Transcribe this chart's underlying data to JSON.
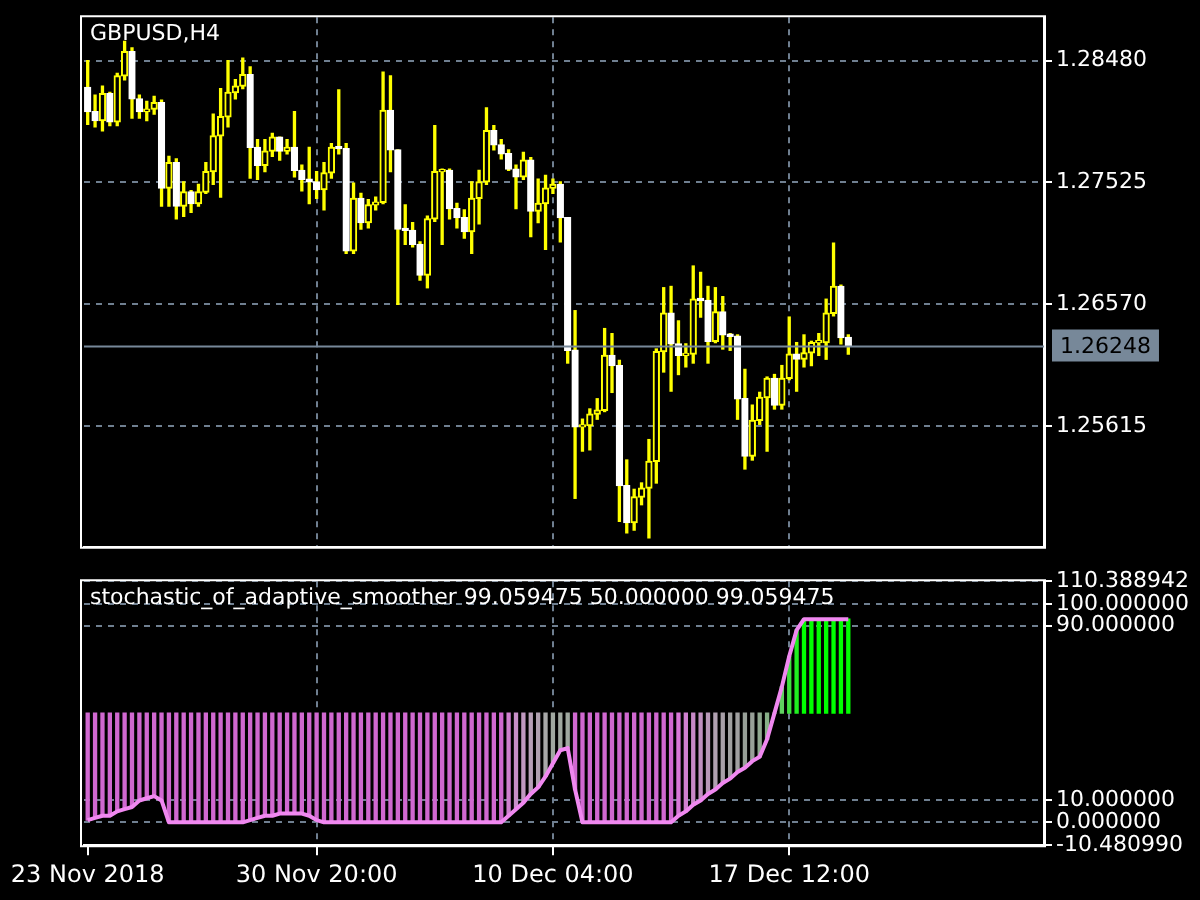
{
  "chart_data": [
    {
      "type": "candlestick",
      "title": "GBPUSD,H4",
      "color": "#ffff00",
      "colors": [
        "#ffffff",
        "#ffffff",
        "#ffff00",
        "#ffffff",
        "#ffff00",
        "#ffff00",
        "#ffffff",
        "#ffffff",
        "#ffff00",
        "#ffff00",
        "#ffffff",
        "#ffff00",
        "#ffffff",
        "#ffff00",
        "#ffffff",
        "#ffff00",
        "#ffff00",
        "#ffff00",
        "#ffff00",
        "#ffff00",
        "#ffff00",
        "#ffff00",
        "#ffffff",
        "#ffffff",
        "#ffff00",
        "#ffff00",
        "#ffffff",
        "#ffff00",
        "#ffffff",
        "#ffffff",
        "#ffffff",
        "#ffffff",
        "#ffff00",
        "#ffff00",
        "#ffffff",
        "#ffffff",
        "#ffff00",
        "#ffffff",
        "#ffff00",
        "#ffff00",
        "#ffff00",
        "#ffffff",
        "#ffffff",
        "#ffffff",
        "#ffffff",
        "#ffffff",
        "#ffff00",
        "#ffff00",
        "#ffff00",
        "#ffffff",
        "#ffffff",
        "#ffffff",
        "#ffff00",
        "#ffff00",
        "#ffff00",
        "#ffffff",
        "#ffffff",
        "#ffffff",
        "#ffffff",
        "#ffff00",
        "#ffffff",
        "#ffff00",
        "#ffff00",
        "#ffff00",
        "#ffffff",
        "#ffffff",
        "#ffffff",
        "#ffff00",
        "#ffff00",
        "#ffff00",
        "#ffff00",
        "#ffffff",
        "#ffffff",
        "#ffffff",
        "#ffff00",
        "#ffff00",
        "#ffff00",
        "#ffff00",
        "#ffff00",
        "#ffffff",
        "#ffffff",
        "#ffff00",
        "#ffff00",
        "#ffffff",
        "#ffffff",
        "#ffff00",
        "#ffffff",
        "#ffffff",
        "#ffffff",
        "#ffffff",
        "#ffff00",
        "#ffff00",
        "#ffff00",
        "#ffffff",
        "#ffff00",
        "#ffff00",
        "#ffffff",
        "#ffff00",
        "#ffff00",
        "#ffff00",
        "#ffff00",
        "#ffff00",
        "#ffffff",
        "#ffffff",
        null,
        null,
        null,
        null,
        null,
        null,
        null,
        null,
        null,
        null,
        null,
        null,
        null,
        null,
        null,
        null,
        null,
        null,
        null,
        null,
        null,
        null,
        null,
        null,
        null,
        null
      ],
      "categories": [
        null,
        null,
        null,
        null,
        null,
        null,
        null,
        null,
        null,
        null,
        null,
        null,
        null,
        null,
        null,
        null,
        null,
        null,
        null,
        null,
        null,
        null,
        null,
        null,
        null,
        null,
        null,
        null,
        null,
        null,
        null,
        null,
        null,
        null,
        null,
        null,
        null,
        null,
        null,
        null,
        null,
        null,
        null,
        null,
        null,
        null,
        null,
        null,
        null,
        null,
        null,
        null,
        null,
        null,
        null,
        null,
        null,
        null,
        null,
        null,
        null,
        null,
        null,
        null,
        null,
        null,
        null,
        null,
        null,
        null,
        null,
        null,
        null,
        null,
        null,
        null,
        null,
        null,
        null,
        null,
        null,
        null,
        null,
        null,
        null,
        null,
        null,
        null,
        null,
        null,
        null,
        null,
        null,
        null,
        null,
        null,
        null,
        null,
        null,
        null,
        null,
        null,
        null,
        null,
        null,
        null,
        null,
        null,
        null,
        null,
        null,
        null,
        null,
        null,
        null,
        null,
        null,
        null,
        null,
        null,
        null,
        null,
        null,
        null,
        null,
        null,
        null,
        null,
        null,
        null
      ],
      "ohlc": [
        [
          1.2827,
          1.2848,
          1.2798,
          1.2808
        ],
        [
          1.2808,
          1.2821,
          1.2796,
          1.2801
        ],
        [
          1.2801,
          1.2828,
          1.2793,
          1.2822
        ],
        [
          1.2822,
          1.2823,
          1.2797,
          1.28
        ],
        [
          1.28,
          1.2838,
          1.2797,
          1.2836
        ],
        [
          1.2836,
          1.2863,
          1.2833,
          1.2855
        ],
        [
          1.2855,
          1.2858,
          1.2803,
          1.2818
        ],
        [
          1.2818,
          1.2821,
          1.2803,
          1.2808
        ],
        [
          1.2808,
          1.2816,
          1.2801,
          1.281
        ],
        [
          1.281,
          1.282,
          1.2806,
          1.2815
        ],
        [
          1.2815,
          1.2817,
          1.2734,
          1.2748
        ],
        [
          1.2748,
          1.2773,
          1.2734,
          1.2768
        ],
        [
          1.2768,
          1.2771,
          1.2724,
          1.2734
        ],
        [
          1.2734,
          1.2753,
          1.2726,
          1.2745
        ],
        [
          1.2745,
          1.2746,
          1.2729,
          1.2736
        ],
        [
          1.2736,
          1.2751,
          1.2734,
          1.2745
        ],
        [
          1.2745,
          1.2768,
          1.2744,
          1.2761
        ],
        [
          1.2761,
          1.2806,
          1.2751,
          1.2789
        ],
        [
          1.2789,
          1.2826,
          1.2741,
          1.2804
        ],
        [
          1.2804,
          1.2848,
          1.2796,
          1.2823
        ],
        [
          1.2823,
          1.2833,
          1.2818,
          1.2828
        ],
        [
          1.2828,
          1.285,
          1.2826,
          1.2837
        ],
        [
          1.2837,
          1.2843,
          1.2756,
          1.278
        ],
        [
          1.278,
          1.2786,
          1.2755,
          1.2766
        ],
        [
          1.2766,
          1.2786,
          1.2761,
          1.2777
        ],
        [
          1.2777,
          1.2791,
          1.2773,
          1.2788
        ],
        [
          1.2788,
          1.2788,
          1.277,
          1.2777
        ],
        [
          1.2777,
          1.2786,
          1.2775,
          1.278
        ],
        [
          1.278,
          1.2808,
          1.2757,
          1.2762
        ],
        [
          1.2762,
          1.2766,
          1.2746,
          1.2755
        ],
        [
          1.2755,
          1.278,
          1.2736,
          1.2753
        ],
        [
          1.2753,
          1.2761,
          1.274,
          1.2747
        ],
        [
          1.2747,
          1.2768,
          1.2731,
          1.276
        ],
        [
          1.276,
          1.2783,
          1.2756,
          1.278
        ],
        [
          1.278,
          1.2825,
          1.2775,
          1.2779
        ],
        [
          1.2779,
          1.2783,
          1.2697,
          1.2699
        ],
        [
          1.2699,
          1.2752,
          1.2697,
          1.274
        ],
        [
          1.274,
          1.2744,
          1.2716,
          1.2721
        ],
        [
          1.2721,
          1.2739,
          1.2717,
          1.2735
        ],
        [
          1.2735,
          1.2741,
          1.2731,
          1.2737
        ],
        [
          1.2737,
          1.2839,
          1.2736,
          1.2809
        ],
        [
          1.2809,
          1.2836,
          1.2761,
          1.2778
        ],
        [
          1.2778,
          1.2778,
          1.2657,
          1.2716
        ],
        [
          1.2716,
          1.2735,
          1.2704,
          1.2715
        ],
        [
          1.2715,
          1.2721,
          1.2702,
          1.2704
        ],
        [
          1.2704,
          1.2706,
          1.2676,
          1.268
        ],
        [
          1.268,
          1.2726,
          1.267,
          1.2724
        ],
        [
          1.2724,
          1.2797,
          1.2722,
          1.2761
        ],
        [
          1.2761,
          1.2763,
          1.2704,
          1.2762
        ],
        [
          1.2762,
          1.2763,
          1.2724,
          1.2732
        ],
        [
          1.2732,
          1.2736,
          1.2717,
          1.2725
        ],
        [
          1.2725,
          1.2731,
          1.2709,
          1.2714
        ],
        [
          1.2714,
          1.2753,
          1.2697,
          1.274
        ],
        [
          1.274,
          1.2762,
          1.272,
          1.2753
        ],
        [
          1.2753,
          1.2811,
          1.2751,
          1.2793
        ],
        [
          1.2793,
          1.2797,
          1.2778,
          1.2782
        ],
        [
          1.2782,
          1.2786,
          1.2771,
          1.2775
        ],
        [
          1.2775,
          1.2778,
          1.2762,
          1.2763
        ],
        [
          1.2763,
          1.2766,
          1.2732,
          1.2757
        ],
        [
          1.2757,
          1.2776,
          1.2755,
          1.277
        ],
        [
          1.277,
          1.2772,
          1.271,
          1.273
        ],
        [
          1.273,
          1.2755,
          1.2721,
          1.2736
        ],
        [
          1.2736,
          1.2758,
          1.27,
          1.2748
        ],
        [
          1.2748,
          1.2755,
          1.2744,
          1.2751
        ],
        [
          1.2751,
          1.2753,
          1.2706,
          1.2725
        ],
        [
          1.2725,
          1.2725,
          1.2611,
          1.2621
        ],
        [
          1.2621,
          1.2652,
          1.2505,
          1.2561
        ],
        [
          1.2561,
          1.2567,
          1.2542,
          1.2562
        ],
        [
          1.2562,
          1.2575,
          1.2543,
          1.2571
        ],
        [
          1.2571,
          1.2583,
          1.2567,
          1.2574
        ],
        [
          1.2574,
          1.2638,
          1.2573,
          1.2617
        ],
        [
          1.2617,
          1.2634,
          1.2588,
          1.2609
        ],
        [
          1.2609,
          1.2613,
          1.2487,
          1.2515
        ],
        [
          1.2515,
          1.2535,
          1.2478,
          1.2486
        ],
        [
          1.2486,
          1.2512,
          1.248,
          1.2506
        ],
        [
          1.2506,
          1.2517,
          1.25,
          1.2513
        ],
        [
          1.2513,
          1.2551,
          1.2474,
          1.2534
        ],
        [
          1.2534,
          1.2622,
          1.2517,
          1.262
        ],
        [
          1.262,
          1.267,
          1.2604,
          1.265
        ],
        [
          1.265,
          1.2671,
          1.2589,
          1.2626
        ],
        [
          1.2626,
          1.2644,
          1.2602,
          1.2617
        ],
        [
          1.2617,
          1.2626,
          1.2608,
          1.2618
        ],
        [
          1.2618,
          1.2687,
          1.2611,
          1.2661
        ],
        [
          1.2661,
          1.2682,
          1.2647,
          1.266
        ],
        [
          1.266,
          1.2671,
          1.2611,
          1.2628
        ],
        [
          1.2628,
          1.267,
          1.2627,
          1.2651
        ],
        [
          1.2651,
          1.2663,
          1.2622,
          1.2633
        ],
        [
          1.2633,
          1.2634,
          1.2621,
          1.2632
        ],
        [
          1.2632,
          1.2633,
          1.2567,
          1.2583
        ],
        [
          1.2583,
          1.2606,
          1.2528,
          1.2538
        ],
        [
          1.2538,
          1.2578,
          1.2535,
          1.2566
        ],
        [
          1.2566,
          1.2588,
          1.2563,
          1.2584
        ],
        [
          1.2584,
          1.26,
          1.2542,
          1.2599
        ],
        [
          1.2599,
          1.2602,
          1.2575,
          1.2578
        ],
        [
          1.2578,
          1.2609,
          1.2575,
          1.2599
        ],
        [
          1.2599,
          1.2647,
          1.2598,
          1.2618
        ],
        [
          1.2618,
          1.2627,
          1.2589,
          1.2614
        ],
        [
          1.2614,
          1.2633,
          1.2608,
          1.2619
        ],
        [
          1.2619,
          1.2628,
          1.2609,
          1.2627
        ],
        [
          1.2627,
          1.2634,
          1.2617,
          1.2627
        ],
        [
          1.2627,
          1.2661,
          1.2614,
          1.265
        ],
        [
          1.265,
          1.2705,
          1.2648,
          1.2671
        ],
        [
          1.2671,
          1.2672,
          1.2626,
          1.2631
        ],
        [
          1.2631,
          1.2633,
          1.2618,
          1.26248
        ],
        null,
        null,
        null,
        null,
        null,
        null,
        null,
        null,
        null,
        null,
        null,
        null,
        null,
        null,
        null,
        null,
        null,
        null,
        null,
        null,
        null,
        null,
        null,
        null,
        null,
        null
      ],
      "ylim": [
        1.2467,
        1.2882
      ],
      "yticks": [
        {
          "value": 1.25615,
          "label": "1.25615"
        },
        {
          "value": 1.2657,
          "label": "1.26570"
        },
        {
          "value": 1.27525,
          "label": "1.27525"
        },
        {
          "value": 1.2848,
          "label": "1.28480"
        }
      ],
      "grid": true,
      "tick_labels": "y",
      "ref_lines": [
        {
          "axis": "y",
          "value": 1.26248,
          "label": "1.26248",
          "color": "#778899"
        }
      ]
    },
    {
      "type": "bar",
      "title": "stochastic_of_adaptive_smoother 99.059475 50.000000 99.059475",
      "categories": [
        "23 Nov 2018",
        null,
        null,
        null,
        null,
        null,
        null,
        null,
        null,
        null,
        null,
        null,
        null,
        null,
        null,
        null,
        null,
        null,
        null,
        null,
        null,
        null,
        null,
        null,
        null,
        null,
        null,
        null,
        null,
        null,
        null,
        "30 Nov 20:00",
        null,
        null,
        null,
        null,
        null,
        null,
        null,
        null,
        null,
        null,
        null,
        null,
        null,
        null,
        null,
        null,
        null,
        null,
        null,
        null,
        null,
        null,
        null,
        null,
        null,
        null,
        null,
        null,
        null,
        null,
        null,
        "10 Dec 04:00",
        null,
        null,
        null,
        null,
        null,
        null,
        null,
        null,
        null,
        null,
        null,
        null,
        null,
        null,
        null,
        null,
        null,
        null,
        null,
        null,
        null,
        null,
        null,
        null,
        null,
        null,
        null,
        null,
        null,
        null,
        null,
        "17 Dec 12:00",
        null,
        null,
        null,
        null,
        null,
        null,
        null,
        null,
        null,
        null,
        null,
        null,
        null,
        null,
        null,
        null,
        null,
        null,
        null,
        null,
        null,
        null,
        null,
        null,
        null,
        null,
        null,
        null,
        null,
        null,
        null,
        null,
        null,
        null
      ],
      "series": [
        {
          "base": [
            50,
            50,
            50,
            50,
            50,
            50,
            50,
            50,
            50,
            50,
            50,
            50,
            50,
            50,
            50,
            50,
            50,
            50,
            50,
            50,
            50,
            50,
            50,
            50,
            50,
            50,
            50,
            50,
            50,
            50,
            50,
            50,
            50,
            50,
            50,
            50,
            50,
            50,
            50,
            50,
            50,
            50,
            50,
            50,
            50,
            50,
            50,
            50,
            50,
            50,
            50,
            50,
            50,
            50,
            50,
            50,
            50,
            50,
            50,
            50,
            50,
            50,
            50,
            50,
            50,
            50,
            50,
            50,
            50,
            50,
            50,
            50,
            50,
            50,
            50,
            50,
            50,
            50,
            50,
            50,
            50,
            50,
            50,
            50,
            50,
            50,
            50,
            50,
            50,
            50,
            50,
            50,
            50,
            50,
            50,
            50,
            50,
            50,
            50,
            50,
            50,
            50,
            50,
            50,
            null,
            null,
            null,
            null,
            null,
            null,
            null,
            null,
            null,
            null,
            null,
            null,
            null,
            null,
            null,
            null,
            null,
            null,
            null,
            null,
            null,
            null,
            null,
            null,
            null,
            null
          ],
          "values": [
            -49,
            -48,
            -47,
            -47,
            -45,
            -44,
            -43,
            -40,
            -39,
            -38,
            -40,
            -50,
            -50,
            -50,
            -50,
            -50,
            -50,
            -50,
            -50,
            -50,
            -50,
            -50,
            -49,
            -48,
            -47,
            -47,
            -46,
            -46,
            -46,
            -46,
            -47,
            -49,
            -50,
            -50,
            -50,
            -50,
            -50,
            -50,
            -50,
            -50,
            -50,
            -50,
            -50,
            -50,
            -50,
            -50,
            -50,
            -50,
            -50,
            -50,
            -50,
            -50,
            -50,
            -50,
            -50,
            -50,
            -50,
            -47,
            -44,
            -41,
            -37,
            -34,
            -29,
            -23,
            -17,
            -16,
            -35,
            -50,
            -50,
            -50,
            -50,
            -50,
            -50,
            -50,
            -50,
            -50,
            -50,
            -50,
            -50,
            -50,
            -47,
            -45,
            -42,
            -40,
            -37,
            -35,
            -32,
            -30,
            -27,
            -25,
            -22,
            -20,
            -12,
            0,
            12,
            26,
            38,
            43,
            43,
            43,
            43,
            43,
            43,
            43,
            null,
            null,
            null,
            null,
            null,
            null,
            null,
            null,
            null,
            null,
            null,
            null,
            null,
            null,
            null,
            null,
            null,
            null,
            null,
            null,
            null,
            null,
            null,
            null,
            null,
            null
          ],
          "colors": [
            "#d068d0",
            "#d068d0",
            "#d068d0",
            "#d068d0",
            "#d068d0",
            "#d068d0",
            "#d068d0",
            "#d068d0",
            "#d068d0",
            "#d068d0",
            "#d068d0",
            "#d068d0",
            "#d068d0",
            "#d068d0",
            "#d068d0",
            "#d068d0",
            "#d068d0",
            "#d068d0",
            "#d068d0",
            "#d068d0",
            "#d068d0",
            "#d068d0",
            "#d068d0",
            "#d068d0",
            "#d068d0",
            "#d068d0",
            "#d068d0",
            "#d068d0",
            "#d068d0",
            "#d068d0",
            "#d068d0",
            "#d068d0",
            "#d068d0",
            "#d068d0",
            "#d068d0",
            "#d068d0",
            "#d068d0",
            "#d068d0",
            "#d068d0",
            "#d068d0",
            "#d068d0",
            "#d068d0",
            "#d068d0",
            "#d068d0",
            "#d068d0",
            "#d068d0",
            "#d068d0",
            "#d068d0",
            "#d068d0",
            "#d068d0",
            "#d068d0",
            "#d068d0",
            "#d068d0",
            "#d068d0",
            "#d068d0",
            "#d068d0",
            "#d068d0",
            "#d080d0",
            "#c890c8",
            "#c098c0",
            "#b8a0b8",
            "#b0a0b0",
            "#a8a8a8",
            "#a0a8a0",
            "#a0a8a0",
            "#a0a8a0",
            "#d068d0",
            "#d068d0",
            "#d068d0",
            "#d068d0",
            "#d068d0",
            "#d068d0",
            "#d068d0",
            "#d068d0",
            "#d068d0",
            "#d068d0",
            "#d068d0",
            "#d068d0",
            "#d068d0",
            "#d068d0",
            "#d878d8",
            "#d080d0",
            "#c888c8",
            "#c090c0",
            "#b898b8",
            "#b0a0b0",
            "#a8a0a8",
            "#a0a0a0",
            "#a0a0a0",
            "#98a098",
            "#98a098",
            "#90a890",
            "#88b088",
            "#70c070",
            "#60d060",
            "#40e040",
            "#20f020",
            "#00ff00",
            "#00ff00",
            "#00ff00",
            "#00ff00",
            "#00ff00",
            "#00ff00",
            "#00ff00",
            null,
            null,
            null,
            null,
            null,
            null,
            null,
            null,
            null,
            null,
            null,
            null,
            null,
            null,
            null,
            null,
            null,
            null,
            null,
            null,
            null,
            null,
            null,
            null,
            null,
            null
          ]
        },
        {
          "type": "line",
          "color": "#f088f0",
          "values": [
            1,
            2,
            3,
            3,
            5,
            6,
            7,
            10,
            11,
            12,
            10,
            0,
            0,
            0,
            0,
            0,
            0,
            0,
            0,
            0,
            0,
            0,
            1,
            2,
            3,
            3,
            4,
            4,
            4,
            4,
            3,
            1,
            0,
            0,
            0,
            0,
            0,
            0,
            0,
            0,
            0,
            0,
            0,
            0,
            0,
            0,
            0,
            0,
            0,
            0,
            0,
            0,
            0,
            0,
            0,
            0,
            0,
            3,
            6,
            9,
            13,
            16,
            21,
            27,
            33,
            34,
            15,
            0,
            0,
            0,
            0,
            0,
            0,
            0,
            0,
            0,
            0,
            0,
            0,
            0,
            3,
            5,
            8,
            10,
            13,
            15,
            18,
            20,
            23,
            25,
            28,
            30,
            38,
            50,
            62,
            76,
            88,
            93,
            93,
            93,
            93,
            93,
            93,
            93,
            null,
            null,
            null,
            null,
            null,
            null,
            null,
            null,
            null,
            null,
            null,
            null,
            null,
            null,
            null,
            null,
            null,
            null,
            null,
            null,
            null,
            null,
            null,
            null,
            null,
            null
          ]
        }
      ],
      "ylim": [
        -10.48099,
        110.388942
      ],
      "yticks": [
        {
          "value": 110.388942,
          "label": "110.388942"
        },
        {
          "value": 100,
          "label": "100.000000"
        },
        {
          "value": 90,
          "label": "90.000000"
        },
        {
          "value": 10,
          "label": "10.000000"
        },
        {
          "value": 0,
          "label": "0.000000"
        },
        {
          "value": -10.48099,
          "label": "-10.480990"
        }
      ],
      "grid": true
    }
  ]
}
